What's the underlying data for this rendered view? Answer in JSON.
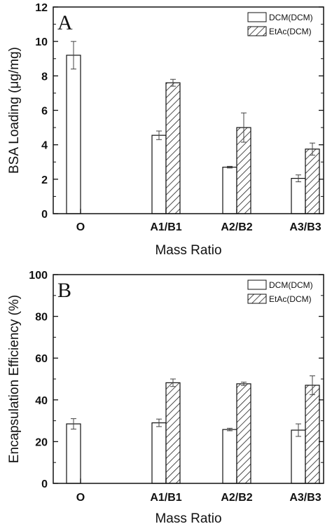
{
  "chart_data": [
    {
      "type": "bar",
      "panel": "A",
      "categories": [
        "O",
        "A1/B1",
        "A2/B2",
        "A3/B3"
      ],
      "series": [
        {
          "name": "DCM(DCM)",
          "pattern": "open",
          "values": [
            9.2,
            4.55,
            2.7,
            2.05
          ],
          "errors": [
            0.8,
            0.25,
            0.05,
            0.2
          ]
        },
        {
          "name": "EtAc(DCM)",
          "pattern": "hatched",
          "values": [
            null,
            7.6,
            5.0,
            3.75
          ],
          "errors": [
            null,
            0.2,
            0.85,
            0.35
          ]
        }
      ],
      "xlabel": "Mass Ratio",
      "ylabel": "BSA Loading (μg/mg)",
      "ylim": [
        0,
        12
      ],
      "yticks": [
        0,
        2,
        4,
        6,
        8,
        10,
        12
      ],
      "legend": "top-right",
      "grid": false
    },
    {
      "type": "bar",
      "panel": "B",
      "categories": [
        "O",
        "A1/B1",
        "A2/B2",
        "A3/B3"
      ],
      "series": [
        {
          "name": "DCM(DCM)",
          "pattern": "open",
          "values": [
            28.5,
            29.0,
            25.8,
            25.5
          ],
          "errors": [
            2.5,
            1.8,
            0.6,
            3.0
          ]
        },
        {
          "name": "EtAc(DCM)",
          "pattern": "hatched",
          "values": [
            null,
            48.2,
            47.7,
            47.0
          ],
          "errors": [
            null,
            1.8,
            0.8,
            4.5
          ]
        }
      ],
      "xlabel": "Mass Ratio",
      "ylabel": "Encapsulation Efficiency (%)",
      "ylim": [
        0,
        100
      ],
      "yticks": [
        0,
        20,
        40,
        60,
        80,
        100
      ],
      "legend": "top-right",
      "grid": false
    }
  ]
}
